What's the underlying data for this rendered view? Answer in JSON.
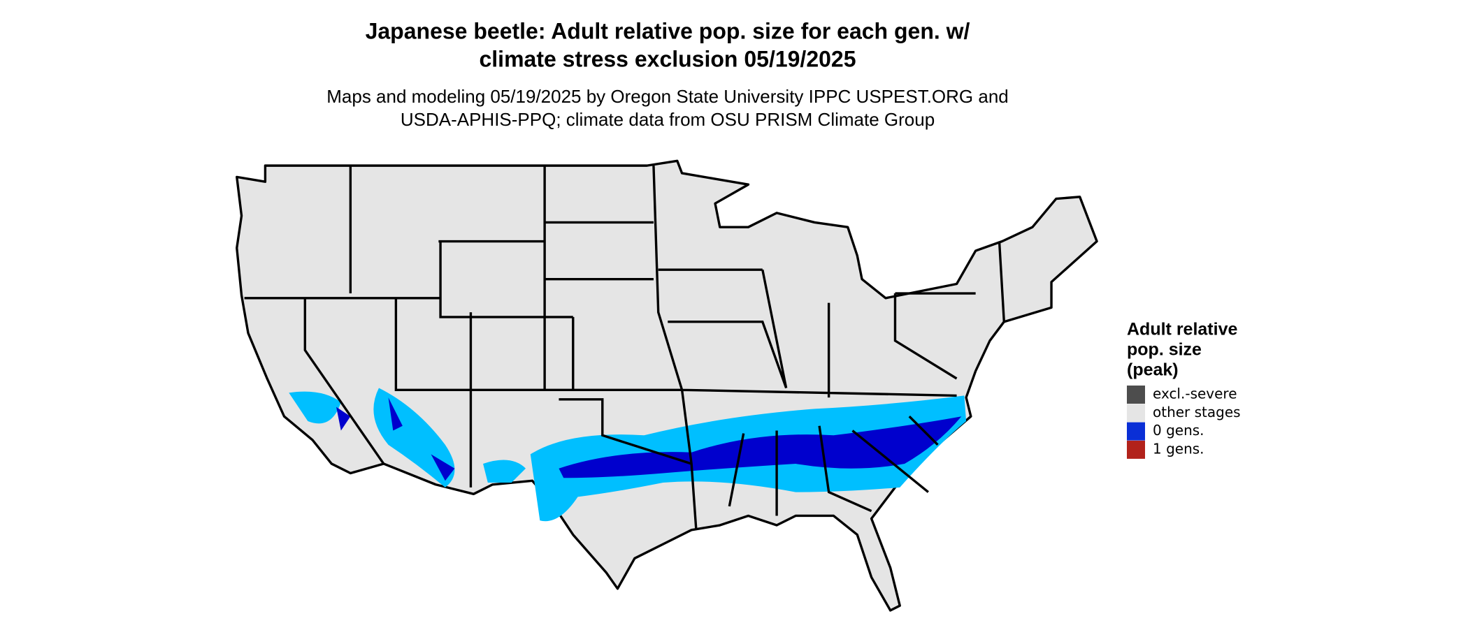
{
  "title": [
    "Japanese beetle: Adult relative pop. size for each gen. w/",
    "climate stress exclusion 05/19/2025"
  ],
  "subtitle": [
    "Maps and modeling 05/19/2025 by Oregon State University IPPC USPEST.ORG and",
    "USDA-APHIS-PPQ; climate data from OSU PRISM Climate Group"
  ],
  "legend": {
    "title": [
      "Adult relative",
      "pop. size",
      "(peak)"
    ],
    "items": [
      {
        "label": "excl.-severe",
        "color": "#4d4d4d"
      },
      {
        "label": "other stages",
        "color": "#e5e5e5"
      },
      {
        "label": "0 gens.",
        "color": "#0a2fd6"
      },
      {
        "label": "1 gens.",
        "color": "#b2221b"
      }
    ]
  }
}
